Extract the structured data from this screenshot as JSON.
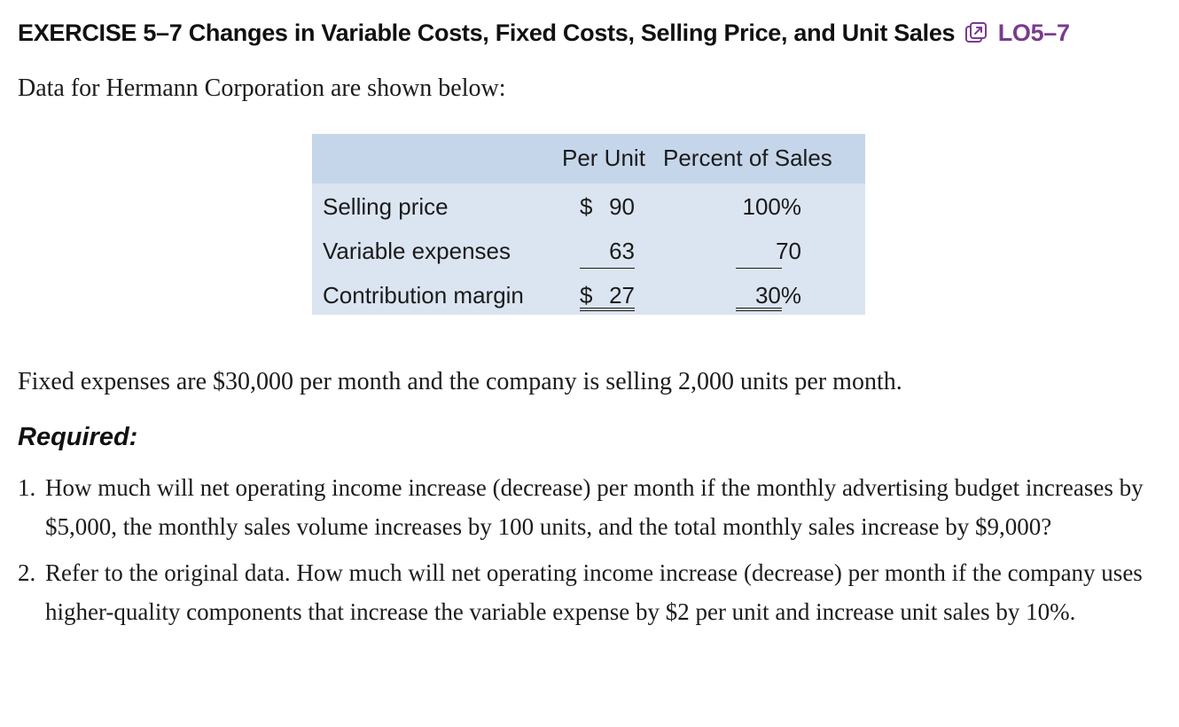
{
  "header": {
    "exercise": "EXERCISE 5–7",
    "title": "Changes in Variable Costs, Fixed Costs, Selling Price, and Unit Sales",
    "icon": "external-link-icon",
    "learning_objective": "LO5–7",
    "lo_color": "#7a3b8f"
  },
  "intro": "Data for Hermann Corporation are shown below:",
  "table": {
    "columns": [
      "Per Unit",
      "Percent of Sales"
    ],
    "rows": [
      {
        "label": "Selling price",
        "currency": "$",
        "unit": "90",
        "percent": "100%"
      },
      {
        "label": "Variable expenses",
        "currency": "",
        "unit": "63",
        "percent": "70"
      },
      {
        "label": "Contribution margin",
        "currency": "$",
        "unit": "27",
        "percent": "30%"
      }
    ],
    "header_bg": "#c5d6eb",
    "body_bg": "#dbe5f1"
  },
  "fixed_text": "Fixed expenses are $30,000 per month and the company is selling 2,000 units per month.",
  "required_label": "Required:",
  "questions": [
    {
      "num": "1.",
      "text": "How much will net operating income increase (decrease) per month if the monthly advertising budget increases by $5,000, the monthly sales volume increases by 100 units, and the total monthly sales increase by $9,000?"
    },
    {
      "num": "2.",
      "text": "Refer to the original data. How much will net operating income increase (decrease) per month if the company uses higher-quality components that increase the variable expense by $2 per unit and increase unit sales by 10%."
    }
  ]
}
